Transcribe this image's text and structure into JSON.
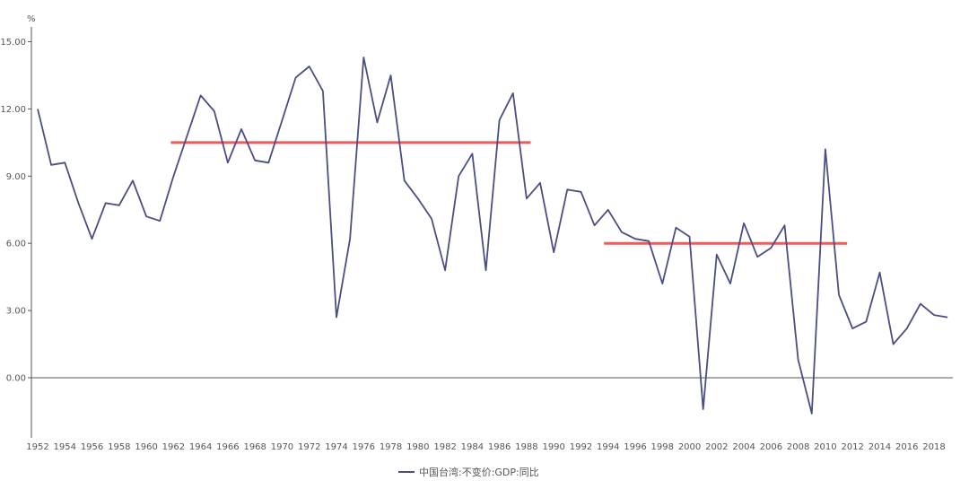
{
  "chart_data": {
    "type": "line",
    "unit_label": "%",
    "ylim": [
      -2.1,
      15.8
    ],
    "y_ticks": [
      "15.00",
      "12.00",
      "9.00",
      "6.00",
      "3.00",
      "0.00"
    ],
    "y_tick_values": [
      15,
      12,
      9,
      6,
      3,
      0
    ],
    "x_ticks": [
      "1952",
      "1954",
      "1956",
      "1958",
      "1960",
      "1962",
      "1964",
      "1966",
      "1968",
      "1970",
      "1972",
      "1974",
      "1976",
      "1978",
      "1980",
      "1982",
      "1984",
      "1986",
      "1988",
      "1990",
      "1992",
      "1994",
      "1996",
      "1998",
      "2000",
      "2002",
      "2004",
      "2006",
      "2008",
      "2010",
      "2012",
      "2014",
      "2016",
      "2018"
    ],
    "grid": "horizontal baseline only",
    "legend_position": "bottom-center",
    "series": [
      {
        "name": "中国台湾:不变价:GDP:同比",
        "color": "#4a4e82",
        "x": [
          1952,
          1953,
          1954,
          1955,
          1956,
          1957,
          1958,
          1959,
          1960,
          1961,
          1962,
          1963,
          1964,
          1965,
          1966,
          1967,
          1968,
          1969,
          1970,
          1971,
          1972,
          1973,
          1974,
          1975,
          1976,
          1977,
          1978,
          1979,
          1980,
          1981,
          1982,
          1983,
          1984,
          1985,
          1986,
          1987,
          1988,
          1989,
          1990,
          1991,
          1992,
          1993,
          1994,
          1995,
          1996,
          1997,
          1998,
          1999,
          2000,
          2001,
          2002,
          2003,
          2004,
          2005,
          2006,
          2007,
          2008,
          2009,
          2010,
          2011,
          2012,
          2013,
          2014,
          2015,
          2016,
          2017,
          2018,
          2019
        ],
        "values": [
          12.0,
          9.5,
          9.6,
          7.8,
          6.2,
          7.8,
          7.7,
          8.8,
          7.2,
          7.0,
          9.0,
          10.8,
          12.6,
          11.9,
          9.6,
          11.1,
          9.7,
          9.6,
          11.5,
          13.4,
          13.9,
          12.8,
          2.7,
          6.2,
          14.3,
          11.4,
          13.5,
          8.8,
          8.0,
          7.1,
          4.8,
          9.0,
          10.0,
          4.8,
          11.5,
          12.7,
          8.0,
          8.7,
          5.6,
          8.4,
          8.3,
          6.8,
          7.5,
          6.5,
          6.2,
          6.1,
          4.2,
          6.7,
          6.3,
          -1.4,
          5.5,
          4.2,
          6.9,
          5.4,
          5.8,
          6.8,
          0.8,
          -1.6,
          10.2,
          3.7,
          2.2,
          2.5,
          4.7,
          1.5,
          2.2,
          3.3,
          2.8,
          2.7
        ]
      }
    ],
    "annotations": [
      {
        "type": "horizontal-segment",
        "color": "#f05a5a",
        "y": 10.5,
        "x_start": 1961.8,
        "x_end": 1988.3
      },
      {
        "type": "horizontal-segment",
        "color": "#f05a5a",
        "y": 6.0,
        "x_start": 1993.7,
        "x_end": 2011.6
      }
    ]
  }
}
